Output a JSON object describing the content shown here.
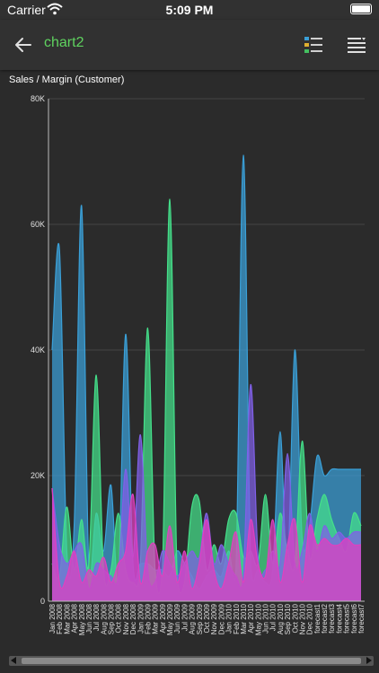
{
  "status": {
    "carrier": "Carrier",
    "time": "5:09 PM"
  },
  "nav": {
    "title": "chart2",
    "title_color": "#5fd35f"
  },
  "chart_data": {
    "type": "area",
    "title": "Sales / Margin (Customer)",
    "ylim": [
      0,
      80000
    ],
    "yticks": [
      "0",
      "20K",
      "40K",
      "60K",
      "80K"
    ],
    "categories": [
      "Jan 2008",
      "Feb 2008",
      "Mar 2008",
      "Apr 2008",
      "May 2008",
      "Jun 2008",
      "Jul 2008",
      "Aug 2008",
      "Sep 2008",
      "Oct 2008",
      "Nov 2008",
      "Dec 2008",
      "Jan 2009",
      "Feb 2009",
      "Mar 2009",
      "Apr 2009",
      "May 2009",
      "Jun 2009",
      "Jul 2009",
      "Aug 2009",
      "Sep 2009",
      "Oct 2009",
      "Nov 2009",
      "Dec 2009",
      "Jan 2010",
      "Feb 2010",
      "Mar 2010",
      "Apr 2010",
      "May 2010",
      "Jun 2010",
      "Jul 2010",
      "Aug 2010",
      "Sep 2010",
      "Oct 2010",
      "Nov 2010",
      "Dec 2010",
      "forecast1",
      "forecast2",
      "forecast3",
      "forecast4",
      "forecast5",
      "forecast6",
      "forecast7"
    ],
    "series": [
      {
        "color": "#3aa0d8",
        "values": [
          40000,
          56000,
          8000,
          12000,
          63000,
          5000,
          14000,
          8000,
          18500,
          3000,
          42500,
          6000,
          6000,
          6000,
          5000,
          5000,
          4000,
          8000,
          6000,
          4000,
          2000,
          4000,
          5000,
          4000,
          8000,
          5000,
          71000,
          6000,
          5000,
          3000,
          5000,
          27000,
          5000,
          40000,
          10000,
          12000,
          23000,
          20000,
          21000,
          21000,
          21000,
          21000,
          21000
        ]
      },
      {
        "color": "#44e08a",
        "values": [
          6000,
          4000,
          15000,
          5000,
          13000,
          6000,
          36000,
          5000,
          5000,
          14000,
          5000,
          3000,
          6000,
          43500,
          5000,
          5000,
          64000,
          4000,
          3000,
          15000,
          16000,
          5000,
          9000,
          6000,
          13000,
          14000,
          7000,
          8000,
          6000,
          17000,
          6000,
          14000,
          8000,
          6000,
          25500,
          7000,
          13000,
          17000,
          13000,
          10000,
          8000,
          14000,
          12000
        ]
      },
      {
        "color": "#8060e8",
        "values": [
          18000,
          9000,
          6000,
          8000,
          9000,
          2000,
          6000,
          5000,
          4000,
          4000,
          21000,
          7000,
          26500,
          5000,
          3000,
          8000,
          6000,
          4000,
          6000,
          8000,
          7000,
          14000,
          6000,
          9000,
          6000,
          4000,
          4000,
          34500,
          7000,
          5000,
          8000,
          6000,
          23500,
          6000,
          8000,
          14000,
          8000,
          12000,
          10000,
          11000,
          10000,
          11000,
          11000
        ]
      },
      {
        "color": "#e040c0",
        "values": [
          18000,
          3000,
          4000,
          8000,
          3000,
          5000,
          4000,
          7000,
          3000,
          6000,
          8000,
          17000,
          3000,
          8000,
          9000,
          4000,
          12000,
          3000,
          8000,
          2000,
          6000,
          13000,
          5000,
          2000,
          6000,
          11000,
          3000,
          13000,
          6000,
          4000,
          13000,
          3000,
          9000,
          13000,
          3000,
          12000,
          9000,
          10000,
          9000,
          9000,
          10000,
          9000,
          9000
        ]
      }
    ]
  }
}
